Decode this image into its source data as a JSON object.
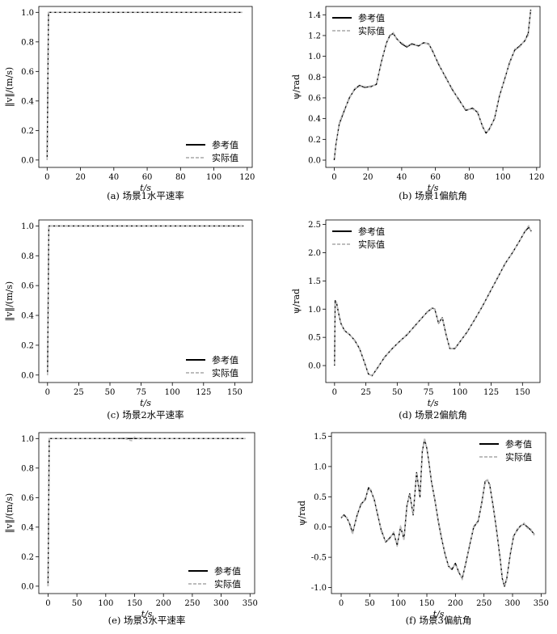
{
  "legend_labels": {
    "reference": "参考值",
    "actual": "实际值"
  },
  "colors": {
    "reference": "#000000",
    "actual": "#bdbdbd",
    "frame": "#000000"
  },
  "chart_data": [
    {
      "id": "a",
      "type": "line",
      "caption": "(a) 场景1水平速率",
      "xlabel": "t/s",
      "ylabel": "‖v‖/(m/s)",
      "xlim": [
        -5,
        123
      ],
      "ylim": [
        -0.05,
        1.04
      ],
      "xticks": [
        0,
        20,
        40,
        60,
        80,
        100,
        120
      ],
      "yticks": [
        0.0,
        0.2,
        0.4,
        0.6,
        0.8,
        1.0
      ],
      "ytick_decimals": 1,
      "legend_position": "lower-right",
      "series": [
        {
          "name": "参考值",
          "style": "solid",
          "x": [
            0,
            0.8,
            2,
            117
          ],
          "y": [
            0.0,
            1.0,
            1.0,
            1.0
          ]
        },
        {
          "name": "实际值",
          "style": "dashed",
          "x": [
            0,
            0.8,
            2,
            117
          ],
          "y": [
            0.0,
            1.0,
            1.0,
            1.0
          ]
        }
      ]
    },
    {
      "id": "b",
      "type": "line",
      "caption": "(b) 场景1偏航角",
      "xlabel": "t/s",
      "ylabel": "ψ/rad",
      "xlim": [
        -5,
        122
      ],
      "ylim": [
        -0.07,
        1.48
      ],
      "xticks": [
        0,
        20,
        40,
        60,
        80,
        100,
        120
      ],
      "yticks": [
        0.0,
        0.2,
        0.4,
        0.6,
        0.8,
        1.0,
        1.2,
        1.4
      ],
      "ytick_decimals": 1,
      "legend_position": "upper-left",
      "series": [
        {
          "name": "参考值",
          "style": "solid",
          "x": [
            0,
            1,
            3,
            6,
            9,
            12,
            15,
            18,
            22,
            25,
            28,
            31,
            33,
            35,
            37,
            40,
            43,
            46,
            50,
            53,
            56,
            58,
            62,
            66,
            70,
            74,
            78,
            82,
            85,
            88,
            90,
            92,
            95,
            98,
            101,
            104,
            107,
            110,
            113,
            115,
            116.5
          ],
          "y": [
            0.0,
            0.15,
            0.35,
            0.48,
            0.6,
            0.68,
            0.72,
            0.7,
            0.71,
            0.73,
            0.95,
            1.13,
            1.2,
            1.22,
            1.17,
            1.12,
            1.09,
            1.12,
            1.1,
            1.13,
            1.12,
            1.06,
            0.92,
            0.8,
            0.68,
            0.58,
            0.48,
            0.5,
            0.46,
            0.32,
            0.26,
            0.3,
            0.4,
            0.62,
            0.78,
            0.94,
            1.06,
            1.1,
            1.15,
            1.22,
            1.45
          ]
        },
        {
          "name": "实际值",
          "style": "dashed",
          "x": [
            0,
            1,
            3,
            6,
            9,
            12,
            15,
            18,
            22,
            25,
            28,
            31,
            33,
            35,
            37,
            40,
            43,
            46,
            50,
            53,
            56,
            58,
            62,
            66,
            70,
            74,
            78,
            82,
            85,
            88,
            90,
            92,
            95,
            98,
            101,
            104,
            107,
            110,
            113,
            115,
            116.5
          ],
          "y": [
            0.02,
            0.14,
            0.36,
            0.49,
            0.59,
            0.69,
            0.71,
            0.71,
            0.7,
            0.74,
            0.94,
            1.14,
            1.19,
            1.23,
            1.16,
            1.13,
            1.1,
            1.11,
            1.11,
            1.12,
            1.13,
            1.05,
            0.93,
            0.79,
            0.69,
            0.57,
            0.49,
            0.49,
            0.47,
            0.31,
            0.27,
            0.29,
            0.41,
            0.61,
            0.79,
            0.93,
            1.07,
            1.09,
            1.16,
            1.2,
            1.44
          ]
        }
      ]
    },
    {
      "id": "c",
      "type": "line",
      "caption": "(c) 场景2水平速率",
      "xlabel": "t/s",
      "ylabel": "‖v‖/(m/s)",
      "xlim": [
        -7,
        164
      ],
      "ylim": [
        -0.05,
        1.04
      ],
      "xticks": [
        0,
        25,
        50,
        75,
        100,
        125,
        150
      ],
      "yticks": [
        0.0,
        0.2,
        0.4,
        0.6,
        0.8,
        1.0
      ],
      "ytick_decimals": 1,
      "legend_position": "lower-right",
      "series": [
        {
          "name": "参考值",
          "style": "solid",
          "x": [
            0,
            1,
            3,
            157
          ],
          "y": [
            0.0,
            1.0,
            1.0,
            1.0
          ]
        },
        {
          "name": "实际值",
          "style": "dashed",
          "x": [
            0,
            1,
            3,
            157
          ],
          "y": [
            0.0,
            1.0,
            1.0,
            1.0
          ]
        }
      ]
    },
    {
      "id": "d",
      "type": "line",
      "caption": "(d) 场景2偏航角",
      "xlabel": "t/s",
      "ylabel": "ψ/rad",
      "xlim": [
        -7,
        164
      ],
      "ylim": [
        -0.3,
        2.58
      ],
      "xticks": [
        0,
        25,
        50,
        75,
        100,
        125,
        150
      ],
      "yticks": [
        0.0,
        0.5,
        1.0,
        1.5,
        2.0,
        2.5
      ],
      "ytick_decimals": 1,
      "legend_position": "upper-left",
      "series": [
        {
          "name": "参考值",
          "style": "solid",
          "x": [
            0,
            0.5,
            1.5,
            3,
            5,
            8,
            12,
            16,
            20,
            24,
            27,
            30,
            34,
            40,
            46,
            52,
            58,
            64,
            70,
            74,
            78,
            80,
            83,
            86,
            89,
            92,
            96,
            100,
            106,
            112,
            118,
            124,
            130,
            136,
            142,
            148,
            152,
            155,
            157
          ],
          "y": [
            0.0,
            1.15,
            1.12,
            0.95,
            0.75,
            0.62,
            0.55,
            0.45,
            0.3,
            0.05,
            -0.15,
            -0.18,
            -0.05,
            0.15,
            0.3,
            0.43,
            0.55,
            0.7,
            0.85,
            0.95,
            1.02,
            1.0,
            0.75,
            0.85,
            0.55,
            0.3,
            0.3,
            0.42,
            0.6,
            0.82,
            1.05,
            1.3,
            1.55,
            1.8,
            2.0,
            2.22,
            2.38,
            2.45,
            2.38
          ]
        },
        {
          "name": "实际值",
          "style": "dashed",
          "x": [
            0,
            0.5,
            1.5,
            3,
            5,
            8,
            12,
            16,
            20,
            24,
            27,
            30,
            34,
            40,
            46,
            52,
            58,
            64,
            70,
            74,
            78,
            80,
            83,
            86,
            89,
            92,
            96,
            100,
            106,
            112,
            118,
            124,
            130,
            136,
            142,
            148,
            152,
            155,
            157
          ],
          "y": [
            0.02,
            1.13,
            1.13,
            0.94,
            0.76,
            0.61,
            0.56,
            0.44,
            0.31,
            0.04,
            -0.14,
            -0.19,
            -0.04,
            0.14,
            0.31,
            0.42,
            0.56,
            0.69,
            0.86,
            0.94,
            1.03,
            0.99,
            0.76,
            0.84,
            0.56,
            0.29,
            0.31,
            0.41,
            0.61,
            0.81,
            1.06,
            1.29,
            1.56,
            1.79,
            2.01,
            2.21,
            2.39,
            2.48,
            2.36
          ]
        }
      ]
    },
    {
      "id": "e",
      "type": "line",
      "caption": "(e) 场景3水平速率",
      "xlabel": "t/s",
      "ylabel": "‖v‖/(m/s)",
      "xlim": [
        -16,
        358
      ],
      "ylim": [
        -0.05,
        1.04
      ],
      "xticks": [
        0,
        50,
        100,
        150,
        200,
        250,
        300,
        350
      ],
      "yticks": [
        0.0,
        0.2,
        0.4,
        0.6,
        0.8,
        1.0
      ],
      "ytick_decimals": 1,
      "legend_position": "lower-right",
      "series": [
        {
          "name": "参考值",
          "style": "solid",
          "x": [
            0,
            2,
            5,
            342
          ],
          "y": [
            0.0,
            1.0,
            1.0,
            1.0
          ]
        },
        {
          "name": "实际值",
          "style": "dashed",
          "x": [
            0,
            2,
            5,
            100,
            120,
            130,
            140,
            145,
            150,
            160,
            170,
            180,
            200,
            342
          ],
          "y": [
            0.0,
            1.0,
            1.0,
            1.0,
            1.0,
            1.005,
            0.99,
            0.985,
            1.01,
            0.995,
            1.005,
            1.0,
            1.0,
            1.0
          ]
        }
      ]
    },
    {
      "id": "f",
      "type": "line",
      "caption": "(f) 场景3偏航角",
      "xlabel": "t/s",
      "ylabel": "ψ/rad",
      "xlim": [
        -17,
        358
      ],
      "ylim": [
        -1.1,
        1.56
      ],
      "xticks": [
        0,
        50,
        100,
        150,
        200,
        250,
        300,
        350
      ],
      "yticks": [
        -1.0,
        -0.5,
        0.0,
        0.5,
        1.0,
        1.5
      ],
      "ytick_decimals": 1,
      "legend_position": "upper-right",
      "series": [
        {
          "name": "参考值",
          "style": "solid",
          "x": [
            0,
            5,
            10,
            15,
            20,
            28,
            35,
            42,
            48,
            52,
            58,
            64,
            70,
            78,
            85,
            92,
            98,
            104,
            110,
            115,
            120,
            126,
            132,
            138,
            142,
            146,
            150,
            154,
            158,
            164,
            170,
            176,
            182,
            188,
            194,
            200,
            206,
            212,
            218,
            225,
            232,
            240,
            246,
            252,
            256,
            260,
            266,
            272,
            278,
            282,
            286,
            290,
            296,
            302,
            308,
            314,
            320,
            326,
            332,
            338
          ],
          "y": [
            0.15,
            0.2,
            0.15,
            0.05,
            -0.1,
            0.2,
            0.38,
            0.45,
            0.65,
            0.6,
            0.45,
            0.2,
            -0.05,
            -0.25,
            -0.18,
            -0.1,
            -0.3,
            0.0,
            -0.2,
            0.35,
            0.55,
            0.2,
            0.9,
            0.5,
            1.25,
            1.45,
            1.3,
            1.05,
            0.75,
            0.45,
            0.1,
            -0.2,
            -0.45,
            -0.65,
            -0.7,
            -0.6,
            -0.75,
            -0.85,
            -0.6,
            -0.3,
            0.0,
            0.1,
            0.4,
            0.75,
            0.78,
            0.7,
            0.35,
            -0.05,
            -0.5,
            -0.85,
            -0.98,
            -0.85,
            -0.45,
            -0.15,
            -0.05,
            0.02,
            0.05,
            0.0,
            -0.05,
            -0.12
          ]
        },
        {
          "name": "实际值",
          "style": "dashed",
          "x": [
            0,
            5,
            10,
            15,
            20,
            28,
            35,
            42,
            48,
            52,
            58,
            64,
            70,
            78,
            85,
            92,
            98,
            104,
            110,
            115,
            120,
            126,
            132,
            138,
            142,
            146,
            150,
            154,
            158,
            164,
            170,
            176,
            182,
            188,
            194,
            200,
            206,
            212,
            218,
            225,
            232,
            240,
            246,
            252,
            256,
            260,
            266,
            272,
            278,
            282,
            286,
            290,
            296,
            302,
            308,
            314,
            320,
            326,
            332,
            338
          ],
          "y": [
            0.17,
            0.18,
            0.16,
            0.03,
            -0.12,
            0.22,
            0.36,
            0.47,
            0.63,
            0.62,
            0.43,
            0.22,
            -0.07,
            -0.24,
            -0.2,
            -0.08,
            -0.32,
            0.02,
            -0.22,
            0.37,
            0.53,
            0.22,
            0.88,
            0.52,
            1.23,
            1.47,
            1.28,
            1.07,
            0.73,
            0.47,
            0.08,
            -0.22,
            -0.43,
            -0.67,
            -0.68,
            -0.62,
            -0.73,
            -0.87,
            -0.58,
            -0.32,
            0.02,
            0.08,
            0.42,
            0.73,
            0.8,
            0.68,
            0.37,
            -0.07,
            -0.48,
            -0.87,
            -0.96,
            -0.87,
            -0.43,
            -0.17,
            -0.03,
            0.0,
            0.07,
            -0.02,
            -0.03,
            -0.14
          ]
        }
      ]
    }
  ]
}
